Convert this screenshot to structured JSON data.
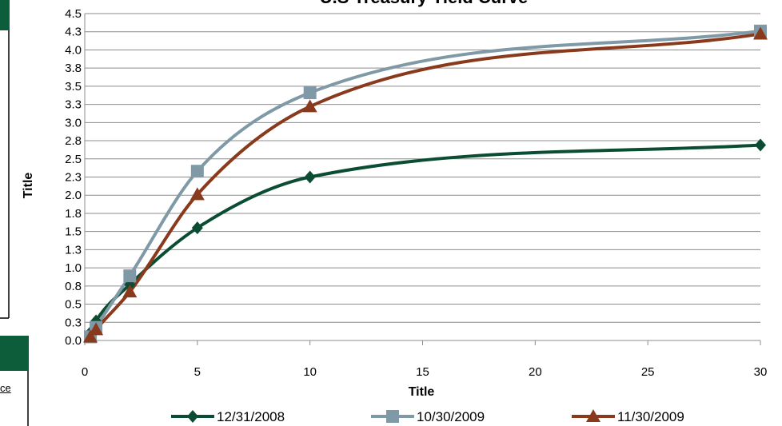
{
  "background_page": {
    "panel_color": "#0d5c3a",
    "partial_link_text": "ce"
  },
  "chart_data": {
    "type": "line",
    "title": "U.S Treasury Yield Curve",
    "xlabel": "Title",
    "ylabel": "Title",
    "xlim": [
      0,
      30
    ],
    "ylim": [
      0,
      4.5
    ],
    "x_ticks": [
      "0",
      "5",
      "10",
      "15",
      "20",
      "25",
      "30"
    ],
    "y_ticks": [
      "0.0",
      "0.3",
      "0.5",
      "0.8",
      "1.0",
      "1.3",
      "1.5",
      "1.8",
      "2.0",
      "2.3",
      "2.5",
      "2.8",
      "3.0",
      "3.3",
      "3.5",
      "3.8",
      "4.0",
      "4.3",
      "4.5"
    ],
    "grid": "horizontal",
    "legend_position": "bottom",
    "series": [
      {
        "name": "12/31/2008",
        "color": "#0b4d33",
        "marker": "diamond",
        "x": [
          0.25,
          0.5,
          2,
          5,
          10,
          30
        ],
        "y": [
          0.11,
          0.27,
          0.77,
          1.55,
          2.25,
          2.69
        ]
      },
      {
        "name": "10/30/2009",
        "color": "#7f9aa6",
        "marker": "square",
        "x": [
          0.25,
          0.5,
          2,
          5,
          10,
          30
        ],
        "y": [
          0.05,
          0.18,
          0.89,
          2.33,
          3.41,
          4.26
        ]
      },
      {
        "name": "11/30/2009",
        "color": "#8a3a1c",
        "marker": "triangle",
        "x": [
          0.25,
          0.5,
          2,
          5,
          10,
          30
        ],
        "y": [
          0.05,
          0.15,
          0.67,
          2.01,
          3.22,
          4.22
        ]
      }
    ]
  }
}
